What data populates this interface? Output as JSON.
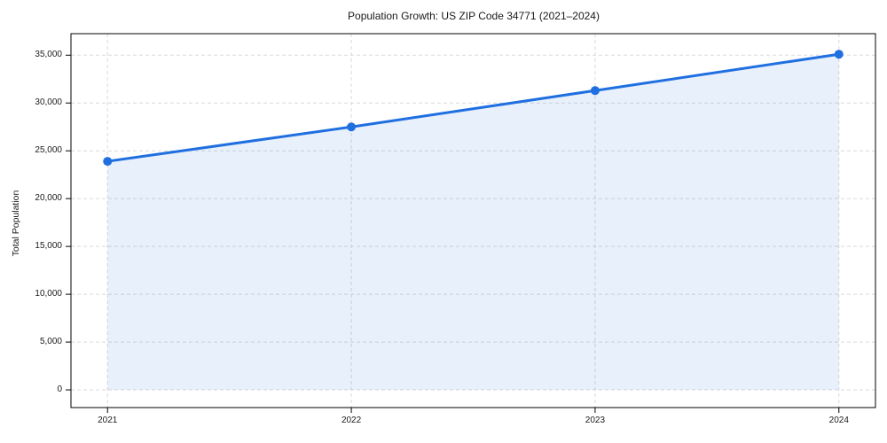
{
  "chart_data": {
    "type": "line",
    "title": "Population Growth: US ZIP Code 34771 (2021–2024)",
    "xlabel": "",
    "ylabel": "Total Population",
    "x": [
      2021,
      2022,
      2023,
      2024
    ],
    "x_tick_labels": [
      "2021",
      "2022",
      "2023",
      "2024"
    ],
    "series": [
      {
        "name": "Total Population",
        "values": [
          23900,
          27500,
          31300,
          35100
        ],
        "marker": "circle",
        "area_fill": true
      }
    ],
    "y_ticks": [
      0,
      5000,
      10000,
      15000,
      20000,
      25000,
      30000,
      35000
    ],
    "y_tick_labels": [
      "0",
      "5,000",
      "10,000",
      "15,000",
      "20,000",
      "25,000",
      "30,000",
      "35,000"
    ],
    "xlim": [
      2020.85,
      2024.15
    ],
    "ylim": [
      -1850,
      37250
    ],
    "area_baseline": 0,
    "grid": true,
    "legend_position": "none"
  },
  "colors": {
    "line": "#1f6fe0",
    "marker": "#1f6fe0",
    "fill": "rgba(31,111,224,0.10)",
    "grid": "#d9d9d9",
    "spine": "#000000",
    "text": "#1a1a1a",
    "background": "#ffffff"
  }
}
